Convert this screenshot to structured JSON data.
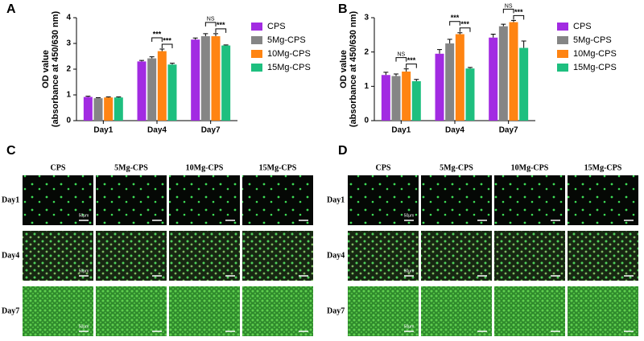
{
  "chart_data": [
    {
      "type": "bar",
      "panel": "A",
      "ylabel": [
        "OD value",
        "(absorbance at 450/630 nm)"
      ],
      "categories": [
        "Day1",
        "Day4",
        "Day7"
      ],
      "series": [
        {
          "name": "CPS",
          "color": "#a22be2",
          "values": [
            0.92,
            2.3,
            3.15
          ],
          "errors": [
            0.03,
            0.04,
            0.06
          ]
        },
        {
          "name": "5Mg-CPS",
          "color": "#858585",
          "values": [
            0.87,
            2.42,
            3.28
          ],
          "errors": [
            0.02,
            0.06,
            0.1
          ]
        },
        {
          "name": "10Mg-CPS",
          "color": "#ff8412",
          "values": [
            0.9,
            2.7,
            3.28
          ],
          "errors": [
            0.02,
            0.08,
            0.1
          ]
        },
        {
          "name": "15Mg-CPS",
          "color": "#1ebf7f",
          "values": [
            0.9,
            2.18,
            2.92
          ],
          "errors": [
            0.02,
            0.05,
            0.02
          ]
        }
      ],
      "ylim": [
        0,
        4
      ],
      "yticks": [
        0,
        1,
        2,
        3,
        4
      ],
      "annotations": [
        {
          "text": "***",
          "category": "Day4",
          "series": [
            "5Mg-CPS",
            "10Mg-CPS"
          ]
        },
        {
          "text": "***",
          "category": "Day4",
          "series": [
            "10Mg-CPS",
            "15Mg-CPS"
          ]
        },
        {
          "text": "NS",
          "category": "Day7",
          "series": [
            "5Mg-CPS",
            "10Mg-CPS"
          ]
        },
        {
          "text": "***",
          "category": "Day7",
          "series": [
            "10Mg-CPS",
            "15Mg-CPS"
          ]
        }
      ]
    },
    {
      "type": "bar",
      "panel": "B",
      "ylabel": [
        "OD value",
        "(absorbance at 450/630 nm)"
      ],
      "categories": [
        "Day1",
        "Day4",
        "Day7"
      ],
      "series": [
        {
          "name": "CPS",
          "color": "#a22be2",
          "values": [
            1.33,
            1.95,
            2.42
          ],
          "errors": [
            0.08,
            0.12,
            0.1
          ]
        },
        {
          "name": "5Mg-CPS",
          "color": "#858585",
          "values": [
            1.3,
            2.25,
            2.75
          ],
          "errors": [
            0.06,
            0.12,
            0.06
          ]
        },
        {
          "name": "10Mg-CPS",
          "color": "#ff8412",
          "values": [
            1.43,
            2.52,
            2.87
          ],
          "errors": [
            0.08,
            0.04,
            0.05
          ]
        },
        {
          "name": "15Mg-CPS",
          "color": "#1ebf7f",
          "values": [
            1.15,
            1.52,
            2.12
          ],
          "errors": [
            0.05,
            0.03,
            0.2
          ]
        }
      ],
      "ylim": [
        0,
        3
      ],
      "yticks": [
        0,
        1,
        2,
        3
      ],
      "annotations": [
        {
          "text": "NS",
          "category": "Day1",
          "series": [
            "5Mg-CPS",
            "10Mg-CPS"
          ]
        },
        {
          "text": "***",
          "category": "Day1",
          "series": [
            "10Mg-CPS",
            "15Mg-CPS"
          ]
        },
        {
          "text": "***",
          "category": "Day4",
          "series": [
            "5Mg-CPS",
            "10Mg-CPS"
          ]
        },
        {
          "text": "***",
          "category": "Day4",
          "series": [
            "10Mg-CPS",
            "15Mg-CPS"
          ]
        },
        {
          "text": "NS",
          "category": "Day7",
          "series": [
            "5Mg-CPS",
            "10Mg-CPS"
          ]
        },
        {
          "text": "***",
          "category": "Day7",
          "series": [
            "10Mg-CPS",
            "15Mg-CPS"
          ]
        }
      ]
    }
  ],
  "image_panels": [
    {
      "panel": "C",
      "columns": [
        "CPS",
        "5Mg-CPS",
        "10Mg-CPS",
        "15Mg-CPS"
      ],
      "rows": [
        "Day1",
        "Day4",
        "Day7"
      ],
      "scale_bar": "50μm"
    },
    {
      "panel": "D",
      "columns": [
        "CPS",
        "5Mg-CPS",
        "10Mg-CPS",
        "15Mg-CPS"
      ],
      "rows": [
        "Day1",
        "Day4",
        "Day7"
      ],
      "scale_bar": "50μm"
    }
  ]
}
